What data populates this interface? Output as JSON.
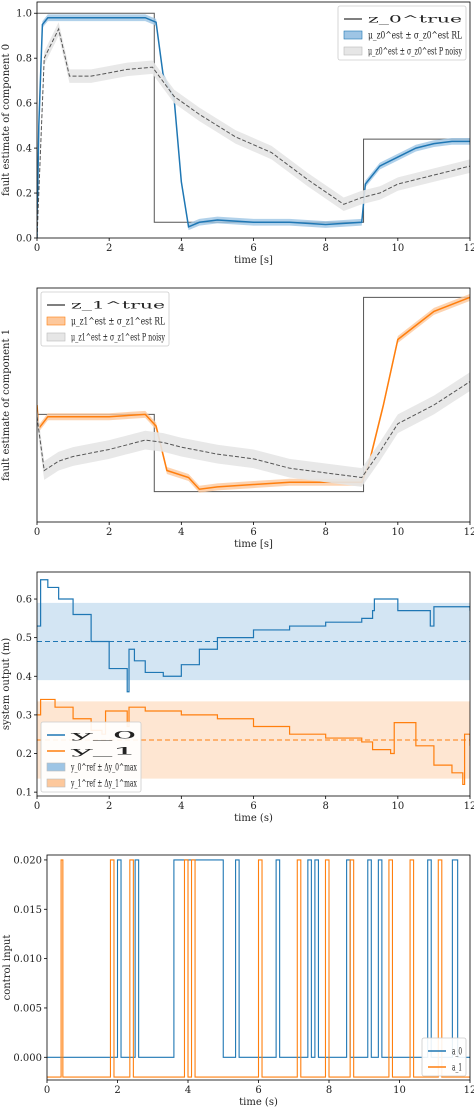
{
  "colors": {
    "blue": "#1f77b4",
    "blue_band": "#9ec5e5",
    "orange": "#ff7f0e",
    "orange_band": "#fdc89c",
    "gray": "#555555",
    "gray_band": "#e6e6e6"
  },
  "chart_data": [
    {
      "type": "line",
      "xlabel": "time [s]",
      "ylabel": "fault estimate of component 0",
      "xlim": [
        0,
        12
      ],
      "ylim": [
        0,
        1.05
      ],
      "xticks": [
        "0",
        "2",
        "4",
        "6",
        "8",
        "10",
        "12"
      ],
      "yticks": [
        "0.0",
        "0.2",
        "0.4",
        "0.6",
        "0.8",
        "1.0"
      ],
      "legend_position": "top-right",
      "legend": [
        "z_0^true",
        "μ_z0^est ± σ_z0^est RL",
        "μ_z0^est ± σ_z0^est P noisy"
      ],
      "series": [
        {
          "name": "z_0^true",
          "style": "step",
          "x": [
            0,
            3.25,
            3.25,
            9.05,
            9.05,
            12
          ],
          "y": [
            1.0,
            1.0,
            0.07,
            0.07,
            0.44,
            0.44
          ]
        },
        {
          "name": "μ_z0^est ± σ_z0^est RL",
          "band": 0.015,
          "x": [
            0,
            0.05,
            0.15,
            0.3,
            1,
            2,
            3,
            3.3,
            3.5,
            3.8,
            4.0,
            4.2,
            4.5,
            5,
            6,
            7,
            8,
            9.0,
            9.1,
            9.5,
            10,
            10.5,
            11,
            11.5,
            12
          ],
          "y": [
            0.0,
            0.5,
            0.95,
            0.98,
            0.98,
            0.98,
            0.98,
            0.96,
            0.72,
            0.62,
            0.25,
            0.05,
            0.07,
            0.08,
            0.07,
            0.07,
            0.06,
            0.07,
            0.24,
            0.32,
            0.36,
            0.4,
            0.42,
            0.43,
            0.43
          ]
        },
        {
          "name": "μ_z0^est ± σ_z0^est P noisy",
          "band": 0.03,
          "x": [
            0,
            0.2,
            0.6,
            0.9,
            1.5,
            2.5,
            3.2,
            3.8,
            4.5,
            5.5,
            6.5,
            7.5,
            8.5,
            9.0,
            9.5,
            10,
            11,
            12
          ],
          "y": [
            0.0,
            0.8,
            0.93,
            0.72,
            0.72,
            0.75,
            0.76,
            0.63,
            0.55,
            0.45,
            0.38,
            0.26,
            0.15,
            0.18,
            0.2,
            0.24,
            0.28,
            0.32
          ]
        }
      ]
    },
    {
      "type": "line",
      "xlabel": "time [s]",
      "ylabel": "fault estimate of component 1",
      "xlim": [
        0,
        12
      ],
      "ylim": [
        0,
        1.0
      ],
      "xticks": [
        "0",
        "2",
        "4",
        "6",
        "8",
        "10",
        "12"
      ],
      "yticks": [],
      "legend_position": "top-left",
      "legend": [
        "z_1^true",
        "μ_z1^est ± σ_z1^est RL",
        "μ_z1^est ± σ_z1^est P noisy"
      ],
      "series": [
        {
          "name": "z_1^true",
          "style": "step",
          "x": [
            0,
            3.25,
            3.25,
            9.05,
            9.05,
            12
          ],
          "y": [
            0.46,
            0.46,
            0.13,
            0.13,
            0.96,
            0.96
          ]
        },
        {
          "name": "μ_z1^est ± σ_z1^est RL",
          "band": 0.015,
          "x": [
            0,
            0.05,
            0.3,
            1,
            2,
            3,
            3.3,
            3.6,
            4.2,
            4.5,
            5,
            6,
            7,
            8,
            9.0,
            9.2,
            9.6,
            10,
            11,
            12
          ],
          "y": [
            0.5,
            0.4,
            0.45,
            0.45,
            0.45,
            0.46,
            0.41,
            0.22,
            0.19,
            0.14,
            0.15,
            0.16,
            0.17,
            0.17,
            0.17,
            0.25,
            0.5,
            0.78,
            0.9,
            0.96
          ]
        },
        {
          "name": "μ_z1^est ± σ_z1^est P noisy",
          "band": 0.04,
          "x": [
            0,
            0.2,
            0.6,
            1,
            2,
            3,
            3.5,
            4,
            5,
            6,
            7,
            8,
            9,
            9.5,
            10,
            10.5,
            11,
            11.5,
            12
          ],
          "y": [
            0.45,
            0.22,
            0.26,
            0.28,
            0.31,
            0.35,
            0.34,
            0.32,
            0.29,
            0.27,
            0.23,
            0.21,
            0.19,
            0.3,
            0.42,
            0.46,
            0.5,
            0.55,
            0.6
          ]
        }
      ]
    },
    {
      "type": "line",
      "xlabel": "time (s)",
      "ylabel": "system output (m)",
      "xlim": [
        0,
        12
      ],
      "ylim": [
        0.09,
        0.67
      ],
      "xticks": [
        "0",
        "2",
        "4",
        "6",
        "8",
        "10",
        "12"
      ],
      "yticks": [
        "0.1",
        "0.2",
        "0.3",
        "0.4",
        "0.5",
        "0.6"
      ],
      "legend_position": "bottom-left",
      "legend": [
        "y_0",
        "y_1",
        "y_0^ref ± Δy_0^max",
        "y_1^ref ± Δy_1^max"
      ],
      "bands": [
        {
          "name": "y_0^ref ± Δy_0^max",
          "center": 0.49,
          "lower": 0.39,
          "upper": 0.59
        },
        {
          "name": "y_1^ref ± Δy_1^max",
          "center": 0.235,
          "lower": 0.135,
          "upper": 0.335
        }
      ],
      "series": [
        {
          "name": "y_0",
          "style": "step",
          "x": [
            0,
            0.1,
            0.3,
            0.6,
            1,
            1.5,
            2,
            2.5,
            2.55,
            2.7,
            3,
            3.5,
            4,
            4.5,
            5,
            6,
            7,
            8,
            9,
            9.3,
            9.35,
            10,
            10.9,
            11,
            11.5,
            12
          ],
          "y": [
            0.53,
            0.65,
            0.63,
            0.6,
            0.56,
            0.49,
            0.42,
            0.36,
            0.47,
            0.44,
            0.41,
            0.4,
            0.43,
            0.47,
            0.5,
            0.52,
            0.53,
            0.54,
            0.55,
            0.57,
            0.6,
            0.57,
            0.53,
            0.58,
            0.58,
            0.57
          ]
        },
        {
          "name": "y_1",
          "style": "step",
          "x": [
            0,
            0.1,
            0.5,
            1,
            1.5,
            1.8,
            1.9,
            2.5,
            2.55,
            3,
            4,
            5,
            6,
            7,
            8,
            9,
            9.3,
            9.8,
            9.9,
            10.5,
            11,
            11.5,
            11.8,
            11.85,
            12
          ],
          "y": [
            0.3,
            0.34,
            0.32,
            0.29,
            0.26,
            0.25,
            0.31,
            0.27,
            0.32,
            0.31,
            0.3,
            0.29,
            0.27,
            0.25,
            0.24,
            0.23,
            0.21,
            0.2,
            0.28,
            0.22,
            0.17,
            0.15,
            0.12,
            0.25,
            0.22
          ]
        }
      ]
    },
    {
      "type": "line",
      "xlabel": "time (s)",
      "ylabel": "control input",
      "xlim": [
        0,
        12
      ],
      "ylim": [
        -0.0023,
        0.0205
      ],
      "xticks": [
        "0",
        "2",
        "4",
        "6",
        "8",
        "10",
        "12"
      ],
      "yticks": [
        "0.000",
        "0.005",
        "0.010",
        "0.015",
        "0.020"
      ],
      "legend_position": "bottom-right",
      "legend": [
        "a_0",
        "a_1"
      ],
      "series": [
        {
          "name": "a_0",
          "style": "pulses",
          "low": 0.0,
          "high": 0.02,
          "pulses": [
            [
              2.0,
              2.1
            ],
            [
              2.5,
              2.6
            ],
            [
              3.6,
              5.0
            ],
            [
              5.35,
              5.45
            ],
            [
              6.5,
              6.6
            ],
            [
              7.4,
              7.5
            ],
            [
              7.6,
              7.7
            ],
            [
              8.5,
              8.6
            ],
            [
              9.1,
              9.2
            ],
            [
              9.4,
              9.5
            ],
            [
              10.8,
              10.9
            ],
            [
              11.5,
              11.65
            ]
          ]
        },
        {
          "name": "a_1",
          "style": "pulses",
          "low": -0.002,
          "high": 0.02,
          "pulses": [
            [
              0.4,
              0.45
            ],
            [
              1.8,
              1.9
            ],
            [
              2.35,
              2.45
            ],
            [
              3.9,
              4.0
            ],
            [
              4.1,
              4.2
            ],
            [
              6.0,
              6.1
            ],
            [
              7.1,
              7.2
            ],
            [
              7.9,
              8.0
            ],
            [
              8.6,
              8.7
            ],
            [
              9.7,
              9.8
            ],
            [
              10.3,
              10.4
            ],
            [
              11.1,
              11.2
            ]
          ]
        }
      ]
    }
  ]
}
